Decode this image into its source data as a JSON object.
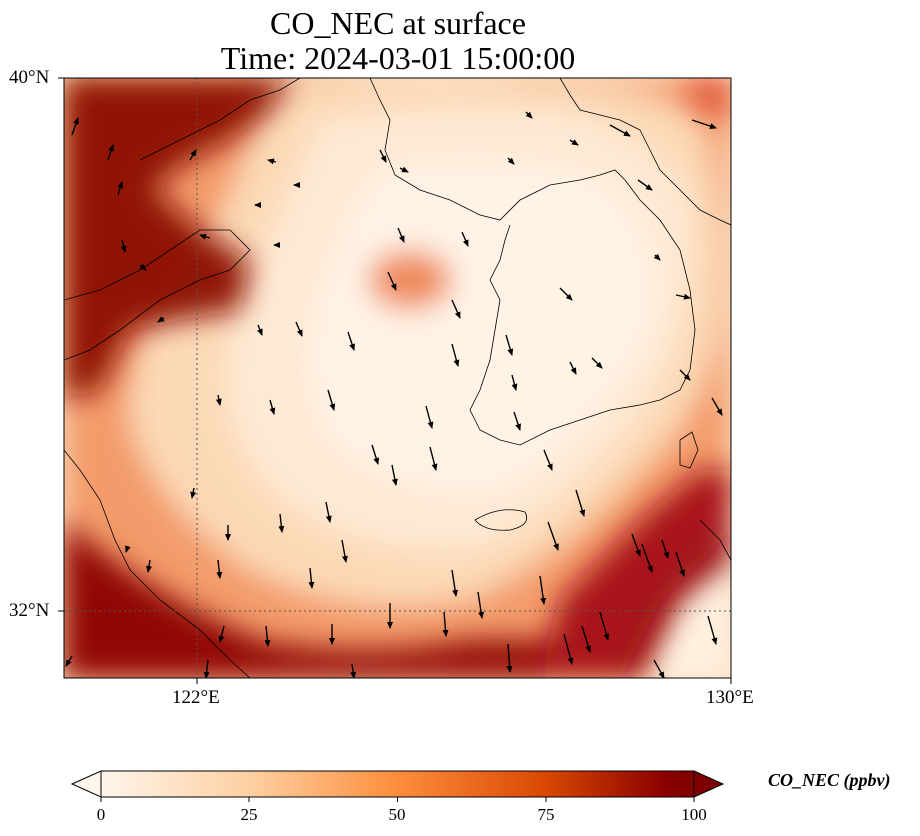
{
  "title_line1": "CO_NEC at surface",
  "title_line2": "Time: 2024-03-01 15:00:00",
  "axes": {
    "lat_labels": [
      "40°N",
      "32°N"
    ],
    "lon_labels": [
      "122°E",
      "130°E"
    ]
  },
  "colorbar": {
    "label": "CO_NEC (ppbv)",
    "ticks": [
      "0",
      "25",
      "50",
      "75",
      "100"
    ],
    "colormap": [
      "#fff5eb",
      "#fdd0a2",
      "#fd8d3c",
      "#d94801",
      "#7f0000"
    ]
  },
  "map": {
    "projection": "plate-carree",
    "field": "CO_NEC concentration",
    "extent_lon": [
      120,
      130
    ],
    "extent_lat": [
      31,
      40
    ],
    "overlays": [
      "coastlines",
      "wind-vectors",
      "gridlines-dotted"
    ]
  }
}
